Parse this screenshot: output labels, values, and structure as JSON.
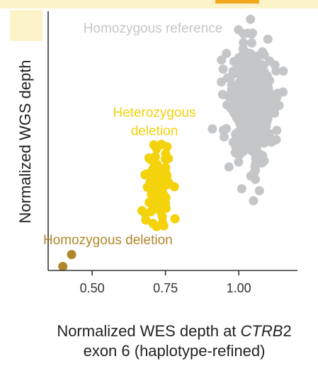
{
  "colors": {
    "background": "#ffffff",
    "top_strip": "#fdf3c9",
    "top_strip_accent": "#f2a81d",
    "panel_shade": "#fdf3c9",
    "axis": "#333333",
    "reference": "#c4c6c8",
    "heterozygous": "#f4d20c",
    "homozygous": "#b0862a"
  },
  "chart_data": {
    "type": "scatter",
    "xlabel_parts": [
      "Normalized WES depth at ",
      "CTRB",
      "2"
    ],
    "xlabel_line2": "exon 6 (haplotype-refined)",
    "ylabel": "Normalized WGS depth",
    "xlim": [
      0.35,
      1.2
    ],
    "ylim": [
      0,
      1.3
    ],
    "x_ticks": [
      0.5,
      0.75,
      1.0
    ],
    "x_tick_labels": [
      "0.50",
      "0.75",
      "1.00"
    ],
    "annotations": {
      "reference": "Homozygous reference",
      "heterozygous_line1": "Heterozygous",
      "heterozygous_line2": "deletion",
      "homozygous": "Homozygous deletion"
    },
    "series": [
      {
        "name": "Homozygous reference",
        "color": "#c4c6c8",
        "center": [
          1.04,
          0.82
        ],
        "spread": [
          0.038,
          0.14
        ],
        "count": 420,
        "points": [
          [
            1.04,
            1.26
          ],
          [
            1.03,
            1.19
          ],
          [
            0.96,
            0.83
          ],
          [
            0.91,
            0.71
          ],
          [
            1.13,
            0.87
          ],
          [
            1.05,
            0.35
          ],
          [
            1.07,
            0.4
          ],
          [
            1.01,
            0.41
          ],
          [
            0.95,
            0.67
          ]
        ]
      },
      {
        "name": "Heterozygous deletion",
        "color": "#f4d20c",
        "center": [
          0.73,
          0.43
        ],
        "spread": [
          0.022,
          0.085
        ],
        "count": 70,
        "points": [
          [
            0.71,
            0.63
          ],
          [
            0.72,
            0.61
          ],
          [
            0.75,
            0.56
          ],
          [
            0.68,
            0.48
          ],
          [
            0.78,
            0.42
          ],
          [
            0.67,
            0.3
          ],
          [
            0.72,
            0.22
          ],
          [
            0.74,
            0.24
          ]
        ]
      },
      {
        "name": "Homozygous deletion",
        "color": "#b0862a",
        "points": [
          [
            0.43,
            0.08
          ],
          [
            0.4,
            0.02
          ]
        ]
      }
    ]
  }
}
